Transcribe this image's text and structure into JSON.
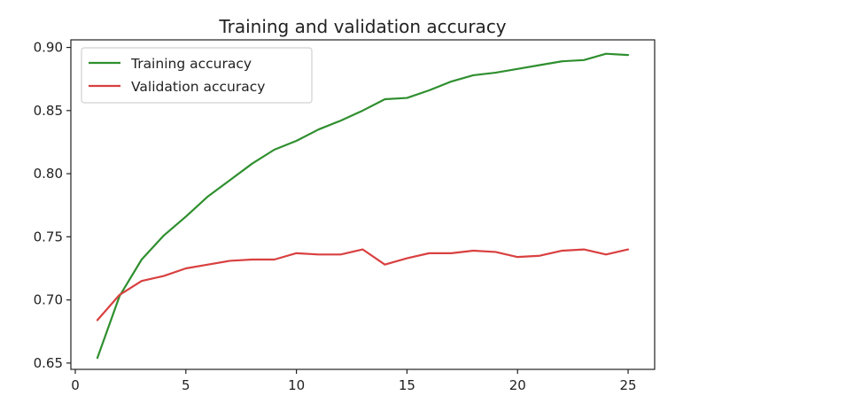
{
  "chart_data": {
    "type": "line",
    "title": "Training and validation accuracy",
    "xlabel": "",
    "ylabel": "",
    "xlim": [
      -0.2,
      26.2
    ],
    "ylim": [
      0.645,
      0.906
    ],
    "xticks": [
      0,
      5,
      10,
      15,
      20,
      25
    ],
    "yticks": [
      0.65,
      0.7,
      0.75,
      0.8,
      0.85,
      0.9
    ],
    "ytick_labels": [
      "0.65",
      "0.70",
      "0.75",
      "0.80",
      "0.85",
      "0.90"
    ],
    "grid": false,
    "legend_position": "upper-left",
    "x": [
      1,
      2,
      3,
      4,
      5,
      6,
      7,
      8,
      9,
      10,
      11,
      12,
      13,
      14,
      15,
      16,
      17,
      18,
      19,
      20,
      21,
      22,
      23,
      24,
      25
    ],
    "series": [
      {
        "name": "Training accuracy",
        "color": "#2f8f2f",
        "values": [
          0.654,
          0.703,
          0.732,
          0.751,
          0.766,
          0.782,
          0.795,
          0.808,
          0.819,
          0.826,
          0.835,
          0.842,
          0.85,
          0.859,
          0.86,
          0.866,
          0.873,
          0.878,
          0.88,
          0.883,
          0.886,
          0.889,
          0.89,
          0.895,
          0.894
        ]
      },
      {
        "name": "Validation accuracy",
        "color": "#d94040",
        "values": [
          0.684,
          0.704,
          0.715,
          0.719,
          0.725,
          0.728,
          0.731,
          0.732,
          0.732,
          0.737,
          0.736,
          0.736,
          0.74,
          0.728,
          0.733,
          0.737,
          0.737,
          0.739,
          0.738,
          0.734,
          0.735,
          0.739,
          0.74,
          0.736,
          0.74
        ]
      }
    ]
  }
}
